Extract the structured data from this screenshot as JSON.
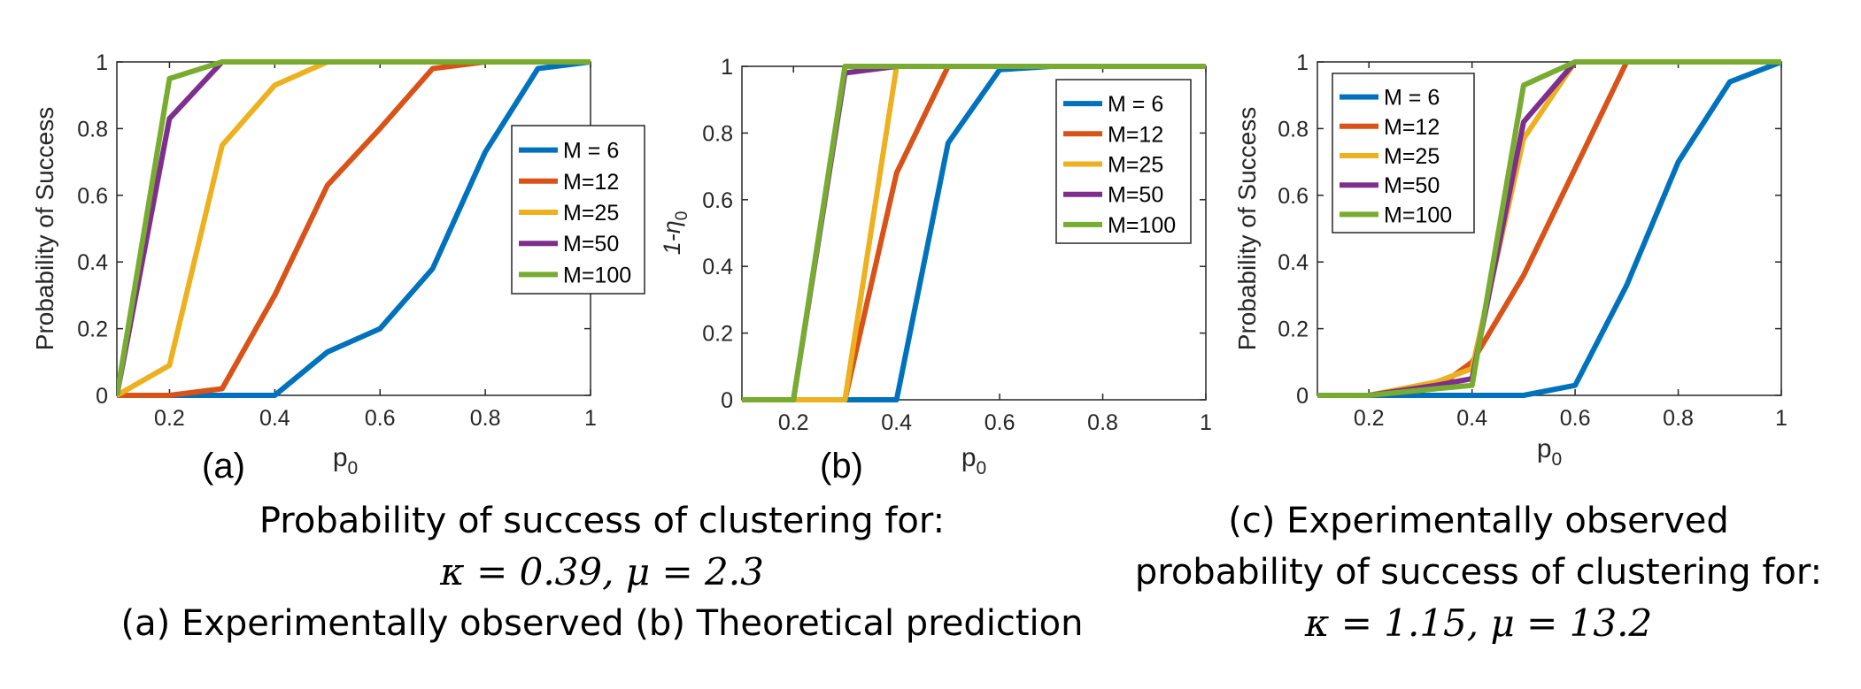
{
  "panel_labels": [
    "(a)",
    "(b)",
    "(c)"
  ],
  "series_colors": {
    "M = 6": "#0072BD",
    "M=12": "#D95319",
    "M=25": "#EDB120",
    "M=50": "#7E2F8E",
    "M=100": "#77AC30"
  },
  "chart_data": [
    {
      "type": "line",
      "panel": "(a)",
      "xlabel": "p0",
      "ylabel": "Probability of Success",
      "xlim": [
        0.1,
        1
      ],
      "ylim": [
        0,
        1
      ],
      "xticks": [
        0.2,
        0.4,
        0.6,
        0.8,
        1
      ],
      "xtick_labels": [
        "0.2",
        "0.4",
        "0.6",
        "0.8",
        "1"
      ],
      "yticks": [
        0,
        0.2,
        0.4,
        0.6,
        0.8,
        1
      ],
      "ytick_labels": [
        "0",
        "0.2",
        "0.4",
        "0.6",
        "0.8",
        "1"
      ],
      "legend": "center-right",
      "x": [
        0.1,
        0.2,
        0.3,
        0.4,
        0.5,
        0.6,
        0.7,
        0.8,
        0.9,
        1.0
      ],
      "series": [
        {
          "name": "M = 6",
          "values": [
            0,
            0,
            0,
            0,
            0.13,
            0.2,
            0.38,
            0.73,
            0.98,
            1
          ]
        },
        {
          "name": "M=12",
          "values": [
            0,
            0,
            0.02,
            0.3,
            0.63,
            0.8,
            0.98,
            1,
            1,
            1
          ]
        },
        {
          "name": "M=25",
          "values": [
            0,
            0.09,
            0.75,
            0.93,
            1,
            1,
            1,
            1,
            1,
            1
          ]
        },
        {
          "name": "M=50",
          "values": [
            0,
            0.83,
            1,
            1,
            1,
            1,
            1,
            1,
            1,
            1
          ]
        },
        {
          "name": "M=100",
          "values": [
            0,
            0.95,
            1,
            1,
            1,
            1,
            1,
            1,
            1,
            1
          ]
        }
      ]
    },
    {
      "type": "line",
      "panel": "(b)",
      "xlabel": "p0",
      "ylabel": "1-η0",
      "xlim": [
        0.1,
        1
      ],
      "ylim": [
        0,
        1
      ],
      "xticks": [
        0.2,
        0.4,
        0.6,
        0.8,
        1
      ],
      "xtick_labels": [
        "0.2",
        "0.4",
        "0.6",
        "0.8",
        "1"
      ],
      "yticks": [
        0,
        0.2,
        0.4,
        0.6,
        0.8,
        1
      ],
      "ytick_labels": [
        "0",
        "0.2",
        "0.4",
        "0.6",
        "0.8",
        "1"
      ],
      "legend": "top-right",
      "x": [
        0.1,
        0.2,
        0.3,
        0.4,
        0.5,
        0.6,
        0.7,
        0.8,
        0.9,
        1.0
      ],
      "series": [
        {
          "name": "M = 6",
          "values": [
            0,
            0,
            0,
            0,
            0.77,
            0.99,
            1,
            1,
            1,
            1
          ]
        },
        {
          "name": "M=12",
          "values": [
            0,
            0,
            0,
            0.68,
            1,
            1,
            1,
            1,
            1,
            1
          ]
        },
        {
          "name": "M=25",
          "values": [
            0,
            0,
            0,
            1,
            1,
            1,
            1,
            1,
            1,
            1
          ]
        },
        {
          "name": "M=50",
          "values": [
            0,
            0,
            0.98,
            1,
            1,
            1,
            1,
            1,
            1,
            1
          ]
        },
        {
          "name": "M=100",
          "values": [
            0,
            0,
            1,
            1,
            1,
            1,
            1,
            1,
            1,
            1
          ]
        }
      ]
    },
    {
      "type": "line",
      "panel": "(c)",
      "xlabel": "p0",
      "ylabel": "Probability of Success",
      "xlim": [
        0.1,
        1
      ],
      "ylim": [
        0,
        1
      ],
      "xticks": [
        0.2,
        0.4,
        0.6,
        0.8,
        1
      ],
      "xtick_labels": [
        "0.2",
        "0.4",
        "0.6",
        "0.8",
        "1"
      ],
      "yticks": [
        0,
        0.2,
        0.4,
        0.6,
        0.8,
        1
      ],
      "ytick_labels": [
        "0",
        "0.2",
        "0.4",
        "0.6",
        "0.8",
        "1"
      ],
      "legend": "top-left",
      "x": [
        0.1,
        0.2,
        0.33,
        0.4,
        0.5,
        0.6,
        0.7,
        0.8,
        0.9,
        1.0
      ],
      "series": [
        {
          "name": "M = 6",
          "values": [
            0,
            0,
            0,
            0,
            0,
            0.03,
            0.33,
            0.7,
            0.94,
            1
          ]
        },
        {
          "name": "M=12",
          "values": [
            0,
            0,
            0.02,
            0.1,
            0.36,
            0.68,
            1,
            1,
            1,
            1
          ]
        },
        {
          "name": "M=25",
          "values": [
            0,
            0,
            0.04,
            0.08,
            0.77,
            1,
            1,
            1,
            1,
            1
          ]
        },
        {
          "name": "M=50",
          "values": [
            0,
            0,
            0.03,
            0.05,
            0.82,
            1,
            1,
            1,
            1,
            1
          ]
        },
        {
          "name": "M=100",
          "values": [
            0,
            0,
            0.02,
            0.03,
            0.93,
            1,
            1,
            1,
            1,
            1
          ]
        }
      ]
    }
  ],
  "captions": {
    "left_line1": "Probability of success of clustering for:",
    "left_line2_math": "κ = 0.39, μ = 2.3",
    "left_line3": "(a) Experimentally observed (b) Theoretical prediction",
    "right_line1": "(c) Experimentally observed",
    "right_line2": "probability of success of clustering for:",
    "right_line3_math": "κ = 1.15, μ = 13.2"
  }
}
